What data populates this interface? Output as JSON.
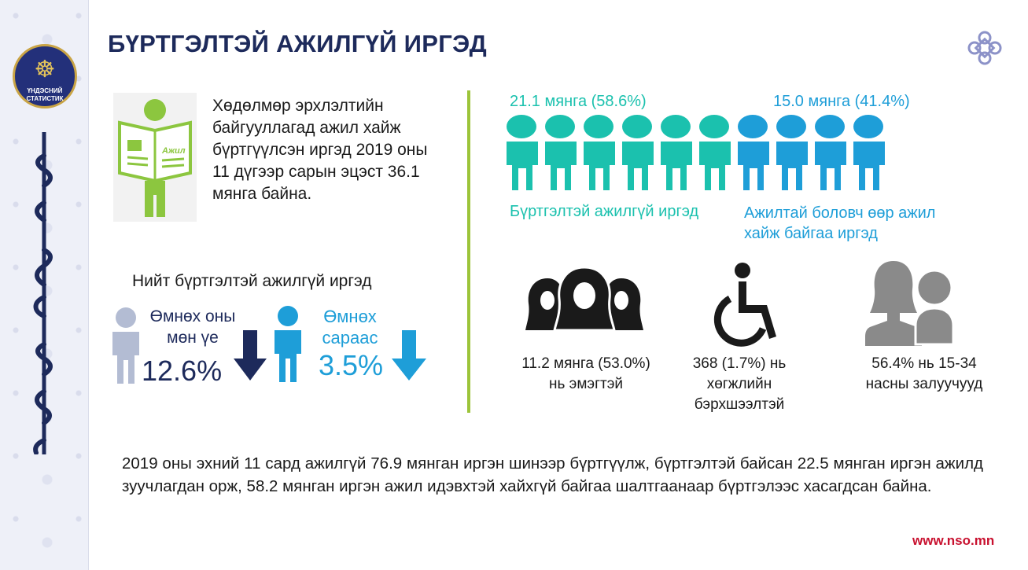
{
  "header": {
    "title": "БҮРТГЭЛТЭЙ АЖИЛГҮЙ ИРГЭД"
  },
  "logo": {
    "line1": "ҮНДЭСНИЙ",
    "line2": "СТАТИСТИК"
  },
  "intro": {
    "badge": "Ажил",
    "text": "Хөдөлмөр эрхлэлтийн байгууллагад ажил хайж бүртгүүлсэн иргэд 2019 оны 11 дүгээр сарын эцэст 36.1 мянга байна."
  },
  "total": {
    "title": "Нийт бүртгэлтэй ажилгүй иргэд",
    "prev_year_label": "Өмнөх оны мөн үе",
    "prev_year_value": "12.6%",
    "prev_month_label": "Өмнөх сараас",
    "prev_month_value": "3.5%"
  },
  "breakdown": {
    "unemployed_value": "21.1 мянга (58.6%)",
    "unemployed_label": "Бүртгэлтэй ажилгүй иргэд",
    "unemployed_count": 6,
    "employed_value": "15.0 мянга (41.4%)",
    "employed_label": "Ажилтай боловч өөр ажил хайж байгаа иргэд",
    "employed_count": 4
  },
  "stats": {
    "women": "11.2 мянга (53.0%) нь эмэгтэй",
    "disabled": "368 (1.7%) нь хөгжлийн бэрхшээлтэй",
    "youth": "56.4% нь 15-34 насны залуучууд"
  },
  "bottom_text": "2019 оны эхний 11 сард ажилгүй 76.9 мянган иргэн шинээр бүртгүүлж, бүртгэлтэй байсан 22.5 мянган иргэн ажилд зуучлагдан орж, 58.2 мянган иргэн ажил идэвхтэй хайхгүй байгаа шалтгаанаар бүртгэлээс хасагдсан байна.",
  "footer": {
    "site": "www.nso.mn"
  },
  "colors": {
    "navy": "#1d2a5b",
    "teal": "#1bc1ae",
    "blue": "#1e9ed8",
    "green": "#8cc63f",
    "gray": "#5f6062",
    "red": "#c8102e"
  },
  "icons": [
    "emblem-icon",
    "newspaper-person-icon",
    "person-icon",
    "arrow-down-icon",
    "women-group-icon",
    "wheelchair-icon",
    "youth-icon"
  ]
}
